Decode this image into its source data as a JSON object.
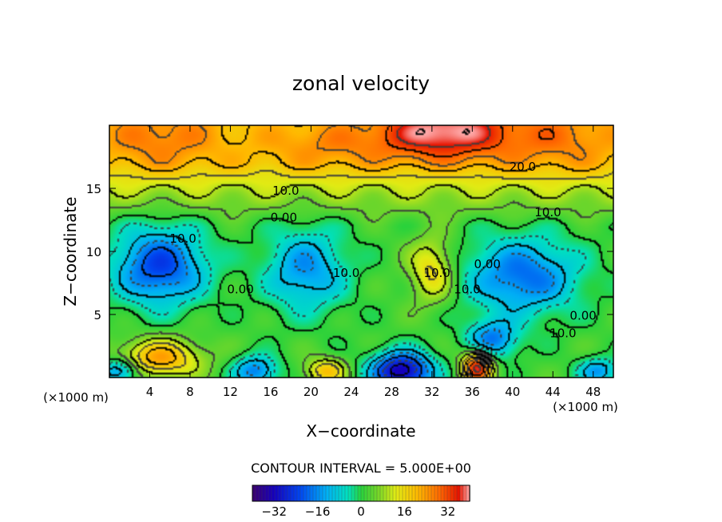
{
  "chart_data": {
    "type": "heatmap",
    "title": "zonal velocity",
    "xlabel": "X−coordinate",
    "ylabel": "Z−coordinate",
    "x_unit_label": "(×1000 m)",
    "z_unit_label": "(×1000 m)",
    "xlim": [
      0,
      50
    ],
    "ylim": [
      0,
      20
    ],
    "x_ticks": [
      4,
      8,
      12,
      16,
      20,
      24,
      28,
      32,
      36,
      40,
      44,
      48
    ],
    "x_tick_labels": [
      "4",
      "8",
      "12",
      "16",
      "20",
      "24",
      "28",
      "32",
      "36",
      "40",
      "44",
      "48"
    ],
    "y_ticks": [
      5,
      10,
      15
    ],
    "y_tick_labels": [
      "5",
      "10",
      "15"
    ],
    "contour_interval_text": "CONTOUR INTERVAL = 5.000E+00",
    "colorbar": {
      "range": [
        -40,
        40
      ],
      "ticks": [
        -32,
        -16,
        0,
        16,
        32
      ],
      "tick_labels": [
        "−32",
        "−16",
        "0",
        "16",
        "32"
      ]
    },
    "contour_labels": [
      {
        "text": "20.0",
        "x": 41,
        "z": 16.7
      },
      {
        "text": "10.0",
        "x": 17.5,
        "z": 14.8
      },
      {
        "text": "10.0",
        "x": 43.5,
        "z": 13.1
      },
      {
        "text": "0.00",
        "x": 17.3,
        "z": 12.7
      },
      {
        "text": "10.0",
        "x": 7.3,
        "z": 11.0
      },
      {
        "text": "10.0",
        "x": 23.5,
        "z": 8.3
      },
      {
        "text": "0.00",
        "x": 13.0,
        "z": 7.0
      },
      {
        "text": "10.0",
        "x": 32.5,
        "z": 8.3
      },
      {
        "text": "10.0",
        "x": 35.5,
        "z": 7.0
      },
      {
        "text": "0.00",
        "x": 37.5,
        "z": 9.0
      },
      {
        "text": "0.00",
        "x": 47.0,
        "z": 4.9
      },
      {
        "text": "10.0",
        "x": 45.0,
        "z": 3.5
      }
    ],
    "field_features": [
      {
        "x": 33,
        "z": 19.5,
        "value": 33,
        "rx": 6,
        "rz": 2.2
      },
      {
        "x": 44,
        "z": 19,
        "value": 20,
        "rx": 7,
        "rz": 2.5
      },
      {
        "x": 5,
        "z": 19,
        "value": 20,
        "rx": 6,
        "rz": 2.5
      },
      {
        "x": 22,
        "z": 18.5,
        "value": 18,
        "rx": 7,
        "rz": 2.0
      },
      {
        "x": 5,
        "z": 8.8,
        "value": -24,
        "rx": 4.5,
        "rz": 3.0
      },
      {
        "x": 19.5,
        "z": 8.5,
        "value": -16,
        "rx": 4,
        "rz": 3.2
      },
      {
        "x": 41,
        "z": 8,
        "value": -20,
        "rx": 5.5,
        "rz": 3.0
      },
      {
        "x": 32,
        "z": 8.5,
        "value": 16,
        "rx": 2.2,
        "rz": 2.5
      },
      {
        "x": 29,
        "z": 0.5,
        "value": -35,
        "rx": 3,
        "rz": 1.5
      },
      {
        "x": 36.5,
        "z": 0.8,
        "value": 36,
        "rx": 1.5,
        "rz": 1.3
      },
      {
        "x": 5,
        "z": 1.5,
        "value": 22,
        "rx": 4,
        "rz": 1.5
      },
      {
        "x": 14.5,
        "z": 0.5,
        "value": -18,
        "rx": 2.2,
        "rz": 1.2
      },
      {
        "x": 21.5,
        "z": 0.5,
        "value": 18,
        "rx": 2,
        "rz": 1.0
      },
      {
        "x": 38,
        "z": 3,
        "value": -18,
        "rx": 2.5,
        "rz": 1.5
      },
      {
        "x": 1,
        "z": 0.5,
        "value": -18,
        "rx": 2,
        "rz": 1.0
      },
      {
        "x": 48.5,
        "z": 0.5,
        "value": -15,
        "rx": 2,
        "rz": 1.0
      }
    ]
  }
}
